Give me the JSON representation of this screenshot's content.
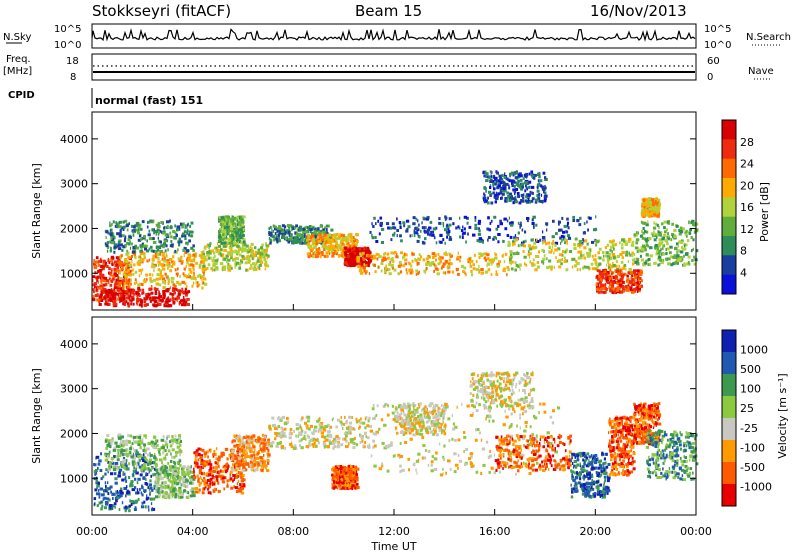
{
  "header": {
    "station": "Stokkseyri (fitACF)",
    "beam": "Beam 15",
    "date": "16/Nov/2013"
  },
  "status_panels": {
    "nsky_label": "N.Sky",
    "nsky_top": "10^5",
    "nsky_bottom": "10^0",
    "nsearch_label": "N.Search",
    "nsearch_top": "10^5",
    "nsearch_bottom": "10^0",
    "freq_label": "Freq.",
    "freq_unit": "[MHz]",
    "freq_top": "18",
    "freq_bottom": "8",
    "nave_label": "Nave",
    "nave_top": "60",
    "nave_bottom": "0",
    "cpid_label": "CPID",
    "cpid_value": "normal (fast) 151"
  },
  "colors": {
    "power_scale": [
      "#0a10d8",
      "#1b3e9e",
      "#2d8c5a",
      "#5fae3c",
      "#b0d23a",
      "#ffaa00",
      "#ff6a00",
      "#ee2a10",
      "#d80000"
    ],
    "velocity_scale": [
      "#e80000",
      "#ff5a00",
      "#ff9a00",
      "#c8c8c0",
      "#8cc840",
      "#3c9a50",
      "#205ab0",
      "#1020b0"
    ]
  },
  "chart_data": {
    "type": "heatmap",
    "x_label": "Time UT",
    "x_ticks": [
      "00:00",
      "04:00",
      "08:00",
      "12:00",
      "16:00",
      "20:00",
      "00:00"
    ],
    "xlim_hours": [
      0,
      24
    ],
    "y_label": "Slant Range [km]",
    "ylim_km": [
      180,
      4600
    ],
    "y_ticks": [
      1000,
      2000,
      3000,
      4000
    ],
    "panels": [
      {
        "name": "power",
        "colorbar_label": "Power [dB]",
        "colorbar_ticks": [
          "28",
          "24",
          "20",
          "16",
          "12",
          "8",
          "4"
        ],
        "regions": [
          {
            "t": [
              0.0,
              1.5
            ],
            "r": [
              400,
              1400
            ],
            "level": 7
          },
          {
            "t": [
              0.2,
              3.8
            ],
            "r": [
              300,
              700
            ],
            "level": 8
          },
          {
            "t": [
              1.0,
              4.5
            ],
            "r": [
              700,
              1500
            ],
            "level": 5
          },
          {
            "t": [
              0.5,
              4.0
            ],
            "r": [
              1500,
              2200
            ],
            "level": 2
          },
          {
            "t": [
              4.3,
              7.0
            ],
            "r": [
              1100,
              1700
            ],
            "level": 4
          },
          {
            "t": [
              5.0,
              6.0
            ],
            "r": [
              1700,
              2300
            ],
            "level": 3
          },
          {
            "t": [
              7.0,
              9.5
            ],
            "r": [
              1700,
              2100
            ],
            "level": 2
          },
          {
            "t": [
              8.5,
              10.5
            ],
            "r": [
              1400,
              1900
            ],
            "level": 5
          },
          {
            "t": [
              10.0,
              11.0
            ],
            "r": [
              1200,
              1600
            ],
            "level": 8
          },
          {
            "t": [
              10.5,
              16.5
            ],
            "r": [
              1000,
              1500
            ],
            "level": 5
          },
          {
            "t": [
              11.0,
              20.0
            ],
            "r": [
              1700,
              2300
            ],
            "level": 1
          },
          {
            "t": [
              15.5,
              18.0
            ],
            "r": [
              2600,
              3300
            ],
            "level": 1
          },
          {
            "t": [
              16.5,
              21.5
            ],
            "r": [
              1100,
              1800
            ],
            "level": 4
          },
          {
            "t": [
              20.0,
              21.8
            ],
            "r": [
              600,
              1100
            ],
            "level": 7
          },
          {
            "t": [
              21.5,
              24.0
            ],
            "r": [
              1200,
              2200
            ],
            "level": 3
          },
          {
            "t": [
              21.8,
              22.5
            ],
            "r": [
              2300,
              2700
            ],
            "level": 5
          }
        ]
      },
      {
        "name": "velocity",
        "colorbar_label": "Velocity [m s⁻¹]",
        "colorbar_ticks": [
          "1000",
          "500",
          "100",
          "25",
          "-25",
          "-100",
          "-500",
          "-1000"
        ],
        "regions": [
          {
            "t": [
              0.0,
              2.5
            ],
            "r": [
              300,
              1600
            ],
            "level": 6
          },
          {
            "t": [
              0.5,
              3.5
            ],
            "r": [
              1200,
              2000
            ],
            "level": 4
          },
          {
            "t": [
              2.5,
              4.0
            ],
            "r": [
              600,
              1300
            ],
            "level": 4
          },
          {
            "t": [
              4.0,
              6.0
            ],
            "r": [
              700,
              1700
            ],
            "level": 1
          },
          {
            "t": [
              5.5,
              7.0
            ],
            "r": [
              1200,
              2000
            ],
            "level": 2
          },
          {
            "t": [
              7.0,
              11.0
            ],
            "r": [
              1700,
              2400
            ],
            "level": 3
          },
          {
            "t": [
              9.5,
              10.5
            ],
            "r": [
              800,
              1300
            ],
            "level": 1
          },
          {
            "t": [
              11.0,
              18.5
            ],
            "r": [
              1100,
              2700
            ],
            "level": 3
          },
          {
            "t": [
              12.0,
              14.0
            ],
            "r": [
              2000,
              2700
            ],
            "level": 3
          },
          {
            "t": [
              16.0,
              19.0
            ],
            "r": [
              1200,
              2000
            ],
            "level": 1
          },
          {
            "t": [
              19.0,
              20.5
            ],
            "r": [
              600,
              1600
            ],
            "level": 6
          },
          {
            "t": [
              20.5,
              21.5
            ],
            "r": [
              1100,
              2400
            ],
            "level": 1
          },
          {
            "t": [
              21.5,
              22.5
            ],
            "r": [
              1800,
              2700
            ],
            "level": 1
          },
          {
            "t": [
              22.0,
              24.0
            ],
            "r": [
              1000,
              2100
            ],
            "level": 5
          },
          {
            "t": [
              15.0,
              17.5
            ],
            "r": [
              2600,
              3400
            ],
            "level": 3
          }
        ]
      }
    ]
  }
}
